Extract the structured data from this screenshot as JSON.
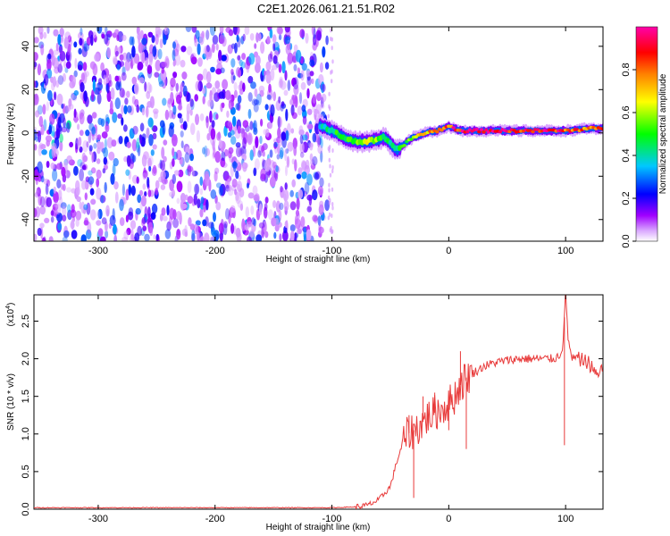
{
  "title": "C2E1.2026.061.21.51.R02",
  "chart_data": [
    {
      "type": "heatmap",
      "xlabel": "Height of straight line (km)",
      "ylabel": "Frequency (Hz)",
      "xlim": [
        -355,
        132
      ],
      "ylim": [
        -50,
        49
      ],
      "xticks": [
        "-300",
        "-200",
        "-100",
        "0",
        "100"
      ],
      "yticks": [
        "-40",
        "-20",
        "0",
        "20",
        "40"
      ],
      "colorbar": {
        "label": "Normalized spectral amplitude",
        "range": [
          0,
          1
        ],
        "ticks": [
          "0.0",
          "0.2",
          "0.4",
          "0.6",
          "0.8"
        ],
        "colors": [
          "#ffffff",
          "#a000ff",
          "#0000ff",
          "#00c8ff",
          "#00ff00",
          "#ffff00",
          "#ff8000",
          "#ff0000",
          "#ff00aa"
        ]
      },
      "noise_region_x": [
        -355,
        -110
      ],
      "ridge": {
        "x": [
          -110,
          -100,
          -90,
          -80,
          -70,
          -60,
          -55,
          -50,
          -45,
          -40,
          -30,
          -20,
          -10,
          0,
          10,
          20,
          40,
          60,
          80,
          100,
          120,
          132
        ],
        "y": [
          3,
          1,
          -2,
          -4,
          -4,
          -3,
          -2,
          -5,
          -8,
          -6,
          -2,
          0,
          1,
          3,
          1,
          1,
          1,
          1,
          1,
          1,
          2,
          2
        ],
        "amplitude": [
          0.35,
          0.45,
          0.5,
          0.55,
          0.6,
          0.55,
          0.5,
          0.45,
          0.4,
          0.5,
          0.6,
          0.7,
          0.75,
          0.85,
          0.9,
          0.95,
          0.95,
          0.9,
          0.9,
          0.85,
          0.8,
          0.8
        ]
      }
    },
    {
      "type": "line",
      "xlabel": "Height of straight line (km)",
      "ylabel": "SNR (10 * v/v)",
      "y_multiplier": "(x10",
      "y_exponent": "4",
      "y_multiplier_close": ")",
      "xlim": [
        -355,
        132
      ],
      "ylim": [
        0,
        2.85
      ],
      "xticks": [
        "-300",
        "-200",
        "-100",
        "0",
        "100"
      ],
      "yticks": [
        "0.0",
        "0.5",
        "1.0",
        "1.5",
        "2.0",
        "2.5"
      ],
      "color": "#e83a3a",
      "series": [
        {
          "x": [
            -355,
            -200,
            -100,
            -80,
            -70,
            -60,
            -50,
            -45,
            -40,
            -35,
            -30,
            -25,
            -20,
            -15,
            -10,
            -5,
            0,
            5,
            10,
            15,
            20,
            30,
            40,
            50,
            60,
            70,
            80,
            90,
            95,
            98,
            100,
            102,
            105,
            110,
            120,
            125,
            130,
            132
          ],
          "y": [
            0.02,
            0.02,
            0.02,
            0.03,
            0.05,
            0.12,
            0.3,
            0.6,
            0.85,
            1.0,
            1.05,
            1.1,
            1.2,
            1.25,
            1.3,
            1.35,
            1.4,
            1.5,
            1.65,
            1.75,
            1.8,
            1.9,
            1.95,
            1.98,
            2.0,
            2.0,
            2.0,
            2.0,
            2.05,
            2.2,
            2.9,
            2.3,
            2.0,
            2.0,
            1.95,
            1.8,
            1.85,
            1.88
          ]
        }
      ],
      "spikes": [
        {
          "x": -34,
          "y": 1.25
        },
        {
          "x": -30,
          "y": 0.15
        },
        {
          "x": -22,
          "y": 1.5
        },
        {
          "x": -12,
          "y": 1.55
        },
        {
          "x": 0,
          "y": 1.05
        },
        {
          "x": 10,
          "y": 2.1
        },
        {
          "x": 15,
          "y": 0.8
        },
        {
          "x": 99,
          "y": 0.85
        },
        {
          "x": 100,
          "y": 2.85
        }
      ]
    }
  ]
}
